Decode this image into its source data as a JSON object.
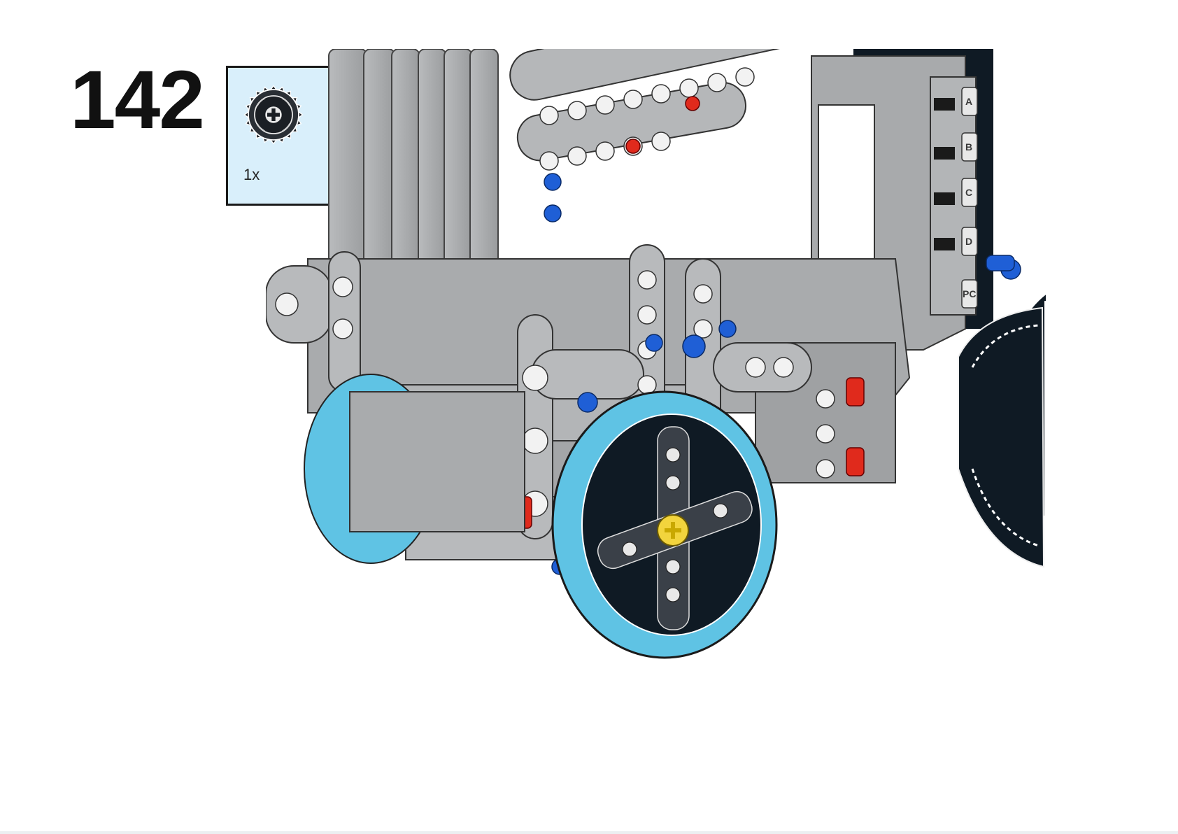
{
  "step": {
    "number": "142"
  },
  "parts_callout": {
    "quantity": "1x",
    "part_icon": "gear-20-tooth-icon"
  },
  "illustration": {
    "subject": "robot-chassis-assembly-icon",
    "hub_port_labels": [
      "A",
      "B",
      "C",
      "D",
      "PC"
    ]
  },
  "colors": {
    "callout_background": "#d9effb",
    "frame_gray": "#a9abad",
    "dark": "#0f1a24",
    "wheel_blue": "#5fc3e4",
    "pin_red": "#e02a1c",
    "pin_blue": "#1f5fd6",
    "bush_yellow": "#f2d43d"
  }
}
